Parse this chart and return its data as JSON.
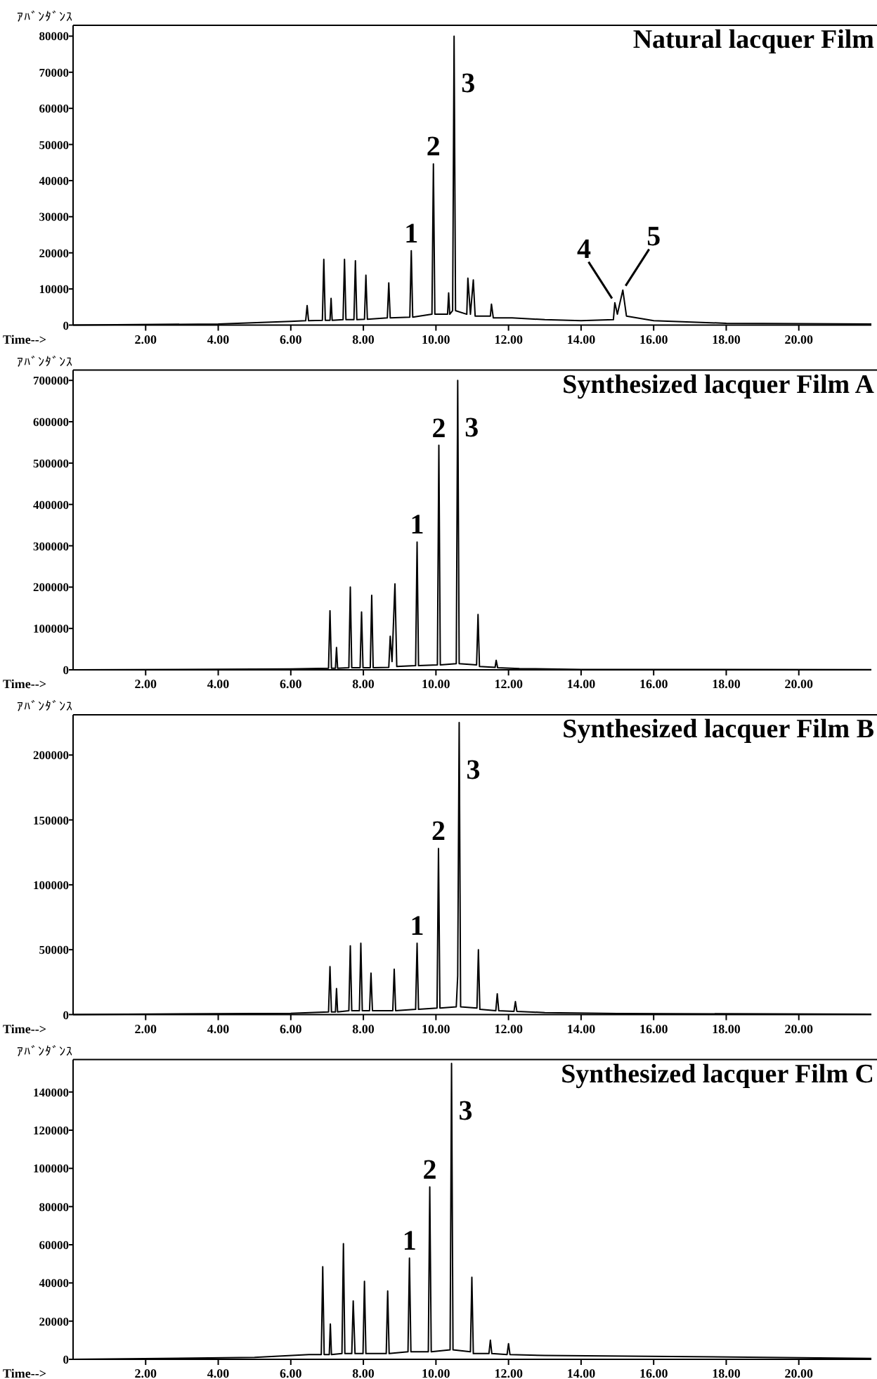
{
  "chart_data": [
    {
      "type": "line",
      "title": "Natural  lacquer Film",
      "ylabel": "ｱﾊﾞﾝﾀﾞﾝｽ",
      "xlabel": "Time-->",
      "xlim": [
        0,
        22
      ],
      "ylim": [
        0,
        83000
      ],
      "xticks": [
        {
          "value": 2,
          "label": "2.00"
        },
        {
          "value": 4,
          "label": "4.00"
        },
        {
          "value": 6,
          "label": "6.00"
        },
        {
          "value": 8,
          "label": "8.00"
        },
        {
          "value": 10,
          "label": "10.00"
        },
        {
          "value": 12,
          "label": "12.00"
        },
        {
          "value": 14,
          "label": "14.00"
        },
        {
          "value": 16,
          "label": "16.00"
        },
        {
          "value": 18,
          "label": "18.00"
        },
        {
          "value": 20,
          "label": "20.00"
        }
      ],
      "yticks": [
        0,
        10000,
        20000,
        30000,
        40000,
        50000,
        60000,
        70000,
        80000
      ],
      "series": [
        {
          "color": "#000000",
          "x": [
            0,
            4,
            6,
            6.41,
            6.45,
            6.49,
            6.87,
            6.91,
            6.95,
            7.08,
            7.11,
            7.14,
            7.44,
            7.48,
            7.52,
            7.74,
            7.78,
            7.82,
            8.03,
            8.07,
            8.11,
            8.66,
            8.7,
            8.74,
            9.28,
            9.32,
            9.36,
            9.89,
            9.93,
            9.97,
            10.32,
            10.35,
            10.38,
            10.46,
            10.5,
            10.54,
            10.85,
            10.88,
            10.95,
            11.03,
            11.08,
            11.5,
            11.53,
            11.58,
            12.1,
            13,
            14,
            14.89,
            14.93,
            15.0,
            15.15,
            15.25,
            16,
            18,
            22
          ],
          "values": [
            0,
            300,
            1000,
            1200,
            5400,
            1200,
            1300,
            18200,
            1300,
            1300,
            7400,
            1300,
            1500,
            18200,
            1500,
            1500,
            17800,
            1500,
            1600,
            13800,
            1600,
            2000,
            11700,
            2000,
            2200,
            20600,
            2200,
            3000,
            44600,
            3000,
            3000,
            8900,
            3000,
            4000,
            80000,
            4000,
            3000,
            13000,
            3000,
            12500,
            2500,
            2500,
            5800,
            2000,
            2000,
            1500,
            1200,
            1500,
            6200,
            3000,
            9700,
            2500,
            1200,
            500,
            300
          ]
        }
      ],
      "annotations": [
        {
          "text": "1",
          "x": 9.32,
          "y": 20600
        },
        {
          "text": "2",
          "x": 9.93,
          "y": 44600
        },
        {
          "text": "3",
          "x": 10.5,
          "y": 80000
        },
        {
          "text": "4",
          "x": 14.93,
          "y": 6200
        },
        {
          "text": "5",
          "x": 15.15,
          "y": 9700
        }
      ]
    },
    {
      "type": "line",
      "title": "Synthesized lacquer  Film A",
      "ylabel": "ｱﾊﾞﾝﾀﾞﾝｽ",
      "xlabel": "Time-->",
      "xlim": [
        0,
        22
      ],
      "ylim": [
        0,
        725000
      ],
      "xticks": [
        {
          "value": 2,
          "label": "2.00"
        },
        {
          "value": 4,
          "label": "4.00"
        },
        {
          "value": 6,
          "label": "6.00"
        },
        {
          "value": 8,
          "label": "8.00"
        },
        {
          "value": 10,
          "label": "10.00"
        },
        {
          "value": 12,
          "label": "12.00"
        },
        {
          "value": 14,
          "label": "14.00"
        },
        {
          "value": 16,
          "label": "16.00"
        },
        {
          "value": 18,
          "label": "18.00"
        },
        {
          "value": 20,
          "label": "20.00"
        }
      ],
      "yticks": [
        0,
        100000,
        200000,
        300000,
        400000,
        500000,
        600000,
        700000
      ],
      "series": [
        {
          "color": "#000000",
          "x": [
            0,
            6,
            7.04,
            7.08,
            7.12,
            7.23,
            7.26,
            7.29,
            7.6,
            7.64,
            7.68,
            7.91,
            7.95,
            7.99,
            8.19,
            8.23,
            8.27,
            8.7,
            8.74,
            8.79,
            8.87,
            8.92,
            9.44,
            9.48,
            9.52,
            10.04,
            10.08,
            10.12,
            10.56,
            10.6,
            10.64,
            11.12,
            11.16,
            11.2,
            11.63,
            11.66,
            11.7,
            12.3,
            14,
            22
          ],
          "values": [
            0,
            2000,
            4000,
            143000,
            4000,
            4000,
            54000,
            4000,
            5000,
            200000,
            5000,
            5000,
            140000,
            5000,
            5000,
            180000,
            5000,
            6000,
            81000,
            20000,
            208000,
            8000,
            10000,
            309000,
            10000,
            12000,
            543000,
            12000,
            15000,
            700000,
            15000,
            12000,
            134000,
            8000,
            6000,
            23000,
            5000,
            3000,
            1000,
            500
          ]
        }
      ],
      "annotations": [
        {
          "text": "1",
          "x": 9.48,
          "y": 309000
        },
        {
          "text": "2",
          "x": 10.08,
          "y": 543000
        },
        {
          "text": "3",
          "x": 10.6,
          "y": 700000
        }
      ]
    },
    {
      "type": "line",
      "title": "Synthesized lacquer  Film B",
      "ylabel": "ｱﾊﾞﾝﾀﾞﾝｽ",
      "xlabel": "Time-->",
      "xlim": [
        0,
        22
      ],
      "ylim": [
        0,
        231000
      ],
      "xticks": [
        {
          "value": 2,
          "label": "2.00"
        },
        {
          "value": 4,
          "label": "4.00"
        },
        {
          "value": 6,
          "label": "6.00"
        },
        {
          "value": 8,
          "label": "8.00"
        },
        {
          "value": 10,
          "label": "10.00"
        },
        {
          "value": 12,
          "label": "12.00"
        },
        {
          "value": 14,
          "label": "14.00"
        },
        {
          "value": 16,
          "label": "16.00"
        },
        {
          "value": 18,
          "label": "18.00"
        },
        {
          "value": 20,
          "label": "20.00"
        }
      ],
      "yticks": [
        0,
        50000,
        100000,
        150000,
        200000
      ],
      "series": [
        {
          "color": "#000000",
          "x": [
            0,
            6,
            7.04,
            7.08,
            7.12,
            7.23,
            7.26,
            7.29,
            7.6,
            7.64,
            7.68,
            7.89,
            7.93,
            7.97,
            8.17,
            8.21,
            8.25,
            8.81,
            8.85,
            8.89,
            9.44,
            9.48,
            9.52,
            10.03,
            10.07,
            10.11,
            10.56,
            10.6,
            10.64,
            10.68,
            11.13,
            11.17,
            11.21,
            11.65,
            11.69,
            11.73,
            12.15,
            12.19,
            12.23,
            13,
            15,
            22
          ],
          "values": [
            0,
            1000,
            2000,
            37000,
            2000,
            2000,
            20000,
            2000,
            3000,
            53000,
            3000,
            3000,
            55000,
            3000,
            3000,
            32000,
            3000,
            3000,
            35000,
            3000,
            4000,
            55000,
            4000,
            5000,
            128000,
            5000,
            6000,
            30000,
            225000,
            6000,
            5000,
            50000,
            4000,
            3000,
            16000,
            3000,
            2500,
            10000,
            2500,
            1500,
            800,
            300
          ]
        }
      ],
      "annotations": [
        {
          "text": "1",
          "x": 9.48,
          "y": 55000
        },
        {
          "text": "2",
          "x": 10.07,
          "y": 128000
        },
        {
          "text": "3",
          "x": 10.64,
          "y": 225000
        }
      ]
    },
    {
      "type": "line",
      "title": "Synthesized lacquer  Film C",
      "ylabel": "ｱﾊﾞﾝﾀﾞﾝｽ",
      "xlabel": "Time-->",
      "xlim": [
        0,
        22
      ],
      "ylim": [
        0,
        157000
      ],
      "xticks": [
        {
          "value": 2,
          "label": "2.00"
        },
        {
          "value": 4,
          "label": "4.00"
        },
        {
          "value": 6,
          "label": "6.00"
        },
        {
          "value": 8,
          "label": "8.00"
        },
        {
          "value": 10,
          "label": "10.00"
        },
        {
          "value": 12,
          "label": "12.00"
        },
        {
          "value": 14,
          "label": "14.00"
        },
        {
          "value": 16,
          "label": "16.00"
        },
        {
          "value": 18,
          "label": "18.00"
        },
        {
          "value": 20,
          "label": "20.00"
        }
      ],
      "yticks": [
        0,
        20000,
        40000,
        60000,
        80000,
        100000,
        120000,
        140000
      ],
      "series": [
        {
          "color": "#000000",
          "x": [
            0,
            5,
            6.5,
            6.84,
            6.88,
            6.92,
            7.06,
            7.09,
            7.12,
            7.41,
            7.45,
            7.49,
            7.68,
            7.72,
            7.77,
            7.99,
            8.03,
            8.07,
            8.63,
            8.67,
            8.71,
            9.23,
            9.27,
            9.31,
            9.79,
            9.83,
            9.87,
            10.39,
            10.43,
            10.47,
            10.95,
            10.99,
            11.03,
            11.46,
            11.5,
            11.54,
            11.96,
            12.0,
            12.04,
            13,
            16.5,
            22
          ],
          "values": [
            0,
            1000,
            2500,
            2500,
            48500,
            2500,
            2500,
            18500,
            2500,
            3000,
            60600,
            3000,
            3000,
            30600,
            3000,
            3000,
            40900,
            3000,
            3000,
            35800,
            3000,
            4000,
            53000,
            4000,
            4000,
            90300,
            4000,
            5000,
            155000,
            5000,
            4000,
            43000,
            3000,
            3000,
            10000,
            3000,
            2500,
            8200,
            2500,
            2000,
            1500,
            500
          ]
        }
      ],
      "annotations": [
        {
          "text": "1",
          "x": 9.27,
          "y": 53000
        },
        {
          "text": "2",
          "x": 9.83,
          "y": 90300
        },
        {
          "text": "3",
          "x": 10.43,
          "y": 155000
        }
      ]
    }
  ]
}
